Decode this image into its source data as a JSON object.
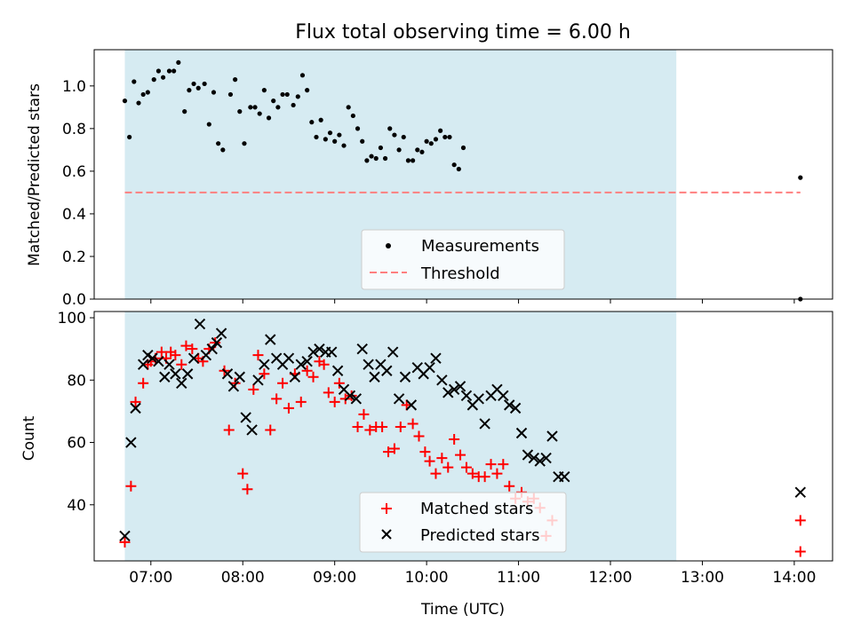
{
  "figure": {
    "title": "Flux total observing time = 6.00 h",
    "xlabel": "Time (UTC)"
  },
  "styles": {
    "shade_color": "#add8e6",
    "threshold_color": "#ff7f7f",
    "measurement_color": "#000000",
    "matched_color": "#ff0000",
    "predicted_color": "#000000"
  },
  "chart_data": [
    {
      "type": "scatter",
      "ylabel": "Matched/Predicted stars",
      "xlim": [
        "06:23",
        "14:25"
      ],
      "ylim": [
        0,
        1.17
      ],
      "x_ticks": [
        "07:00",
        "08:00",
        "09:00",
        "10:00",
        "11:00",
        "12:00",
        "13:00",
        "14:00"
      ],
      "y_ticks": [
        "0.0",
        "0.2",
        "0.4",
        "0.6",
        "0.8",
        "1.0"
      ],
      "y_tick_values": [
        0,
        0.2,
        0.4,
        0.6,
        0.8,
        1.0
      ],
      "shaded_span": [
        "06:43",
        "12:43"
      ],
      "legend": {
        "position": "lower center",
        "entries": [
          "Measurements",
          "Threshold"
        ]
      },
      "threshold": {
        "name": "Threshold",
        "value": 0.5,
        "x_range": [
          "06:43",
          "14:04"
        ]
      },
      "series": [
        {
          "name": "Measurements",
          "points": [
            [
              "06:43",
              0.93
            ],
            [
              "06:46",
              0.76
            ],
            [
              "06:49",
              1.02
            ],
            [
              "06:52",
              0.92
            ],
            [
              "06:55",
              0.96
            ],
            [
              "06:58",
              0.97
            ],
            [
              "07:02",
              1.03
            ],
            [
              "07:05",
              1.07
            ],
            [
              "07:08",
              1.04
            ],
            [
              "07:12",
              1.07
            ],
            [
              "07:15",
              1.07
            ],
            [
              "07:18",
              1.11
            ],
            [
              "07:22",
              0.88
            ],
            [
              "07:25",
              0.98
            ],
            [
              "07:28",
              1.01
            ],
            [
              "07:31",
              0.99
            ],
            [
              "07:35",
              1.01
            ],
            [
              "07:38",
              0.82
            ],
            [
              "07:41",
              0.97
            ],
            [
              "07:44",
              0.73
            ],
            [
              "07:47",
              0.7
            ],
            [
              "07:52",
              0.96
            ],
            [
              "07:55",
              1.03
            ],
            [
              "07:58",
              0.88
            ],
            [
              "08:01",
              0.73
            ],
            [
              "08:05",
              0.9
            ],
            [
              "08:08",
              0.9
            ],
            [
              "08:11",
              0.87
            ],
            [
              "08:14",
              0.98
            ],
            [
              "08:17",
              0.85
            ],
            [
              "08:20",
              0.93
            ],
            [
              "08:23",
              0.9
            ],
            [
              "08:26",
              0.96
            ],
            [
              "08:29",
              0.96
            ],
            [
              "08:33",
              0.91
            ],
            [
              "08:36",
              0.95
            ],
            [
              "08:39",
              1.05
            ],
            [
              "08:42",
              0.98
            ],
            [
              "08:45",
              0.83
            ],
            [
              "08:48",
              0.76
            ],
            [
              "08:51",
              0.84
            ],
            [
              "08:54",
              0.75
            ],
            [
              "08:57",
              0.78
            ],
            [
              "09:00",
              0.74
            ],
            [
              "09:03",
              0.77
            ],
            [
              "09:06",
              0.72
            ],
            [
              "09:09",
              0.9
            ],
            [
              "09:12",
              0.86
            ],
            [
              "09:15",
              0.8
            ],
            [
              "09:18",
              0.74
            ],
            [
              "09:21",
              0.65
            ],
            [
              "09:24",
              0.67
            ],
            [
              "09:27",
              0.66
            ],
            [
              "09:30",
              0.71
            ],
            [
              "09:33",
              0.66
            ],
            [
              "09:36",
              0.8
            ],
            [
              "09:39",
              0.77
            ],
            [
              "09:42",
              0.7
            ],
            [
              "09:45",
              0.76
            ],
            [
              "09:48",
              0.65
            ],
            [
              "09:51",
              0.65
            ],
            [
              "09:54",
              0.7
            ],
            [
              "09:57",
              0.69
            ],
            [
              "10:00",
              0.74
            ],
            [
              "10:03",
              0.73
            ],
            [
              "10:06",
              0.75
            ],
            [
              "10:09",
              0.79
            ],
            [
              "10:12",
              0.76
            ],
            [
              "10:15",
              0.76
            ],
            [
              "10:18",
              0.63
            ],
            [
              "10:21",
              0.61
            ],
            [
              "10:24",
              0.71
            ],
            [
              "14:04",
              0.57
            ],
            [
              "14:04",
              0.0
            ]
          ]
        }
      ]
    },
    {
      "type": "scatter",
      "ylabel": "Count",
      "xlim": [
        "06:23",
        "14:25"
      ],
      "ylim": [
        22,
        102
      ],
      "x_ticks": [
        "07:00",
        "08:00",
        "09:00",
        "10:00",
        "11:00",
        "12:00",
        "13:00",
        "14:00"
      ],
      "y_ticks": [
        "40",
        "60",
        "80",
        "100"
      ],
      "y_tick_values": [
        40,
        60,
        80,
        100
      ],
      "shaded_span": [
        "06:43",
        "12:43"
      ],
      "legend": {
        "position": "lower center",
        "entries": [
          "Matched stars",
          "Predicted stars"
        ]
      },
      "series": [
        {
          "name": "Matched stars",
          "marker": "plus",
          "points": [
            [
              "06:43",
              28
            ],
            [
              "06:47",
              46
            ],
            [
              "06:50",
              73
            ],
            [
              "06:55",
              79
            ],
            [
              "06:58",
              85
            ],
            [
              "07:00",
              86
            ],
            [
              "07:03",
              87
            ],
            [
              "07:07",
              89
            ],
            [
              "07:10",
              87
            ],
            [
              "07:13",
              89
            ],
            [
              "07:16",
              88
            ],
            [
              "07:20",
              85
            ],
            [
              "07:23",
              91
            ],
            [
              "07:27",
              90
            ],
            [
              "07:31",
              87
            ],
            [
              "07:34",
              86
            ],
            [
              "07:38",
              90
            ],
            [
              "07:42",
              92
            ],
            [
              "07:48",
              83
            ],
            [
              "07:51",
              64
            ],
            [
              "07:55",
              79
            ],
            [
              "08:00",
              50
            ],
            [
              "08:03",
              45
            ],
            [
              "08:07",
              77
            ],
            [
              "08:10",
              88
            ],
            [
              "08:14",
              82
            ],
            [
              "08:18",
              64
            ],
            [
              "08:22",
              74
            ],
            [
              "08:26",
              79
            ],
            [
              "08:30",
              71
            ],
            [
              "08:34",
              82
            ],
            [
              "08:38",
              73
            ],
            [
              "08:42",
              83
            ],
            [
              "08:46",
              81
            ],
            [
              "08:50",
              86
            ],
            [
              "08:53",
              85
            ],
            [
              "08:56",
              76
            ],
            [
              "09:00",
              73
            ],
            [
              "09:03",
              79
            ],
            [
              "09:07",
              74
            ],
            [
              "09:11",
              75
            ],
            [
              "09:15",
              65
            ],
            [
              "09:19",
              69
            ],
            [
              "09:23",
              64
            ],
            [
              "09:27",
              65
            ],
            [
              "09:31",
              65
            ],
            [
              "09:35",
              57
            ],
            [
              "09:39",
              58
            ],
            [
              "09:43",
              65
            ],
            [
              "09:47",
              72
            ],
            [
              "09:51",
              66
            ],
            [
              "09:55",
              62
            ],
            [
              "09:59",
              57
            ],
            [
              "10:02",
              54
            ],
            [
              "10:06",
              50
            ],
            [
              "10:10",
              55
            ],
            [
              "10:14",
              52
            ],
            [
              "10:18",
              61
            ],
            [
              "10:22",
              56
            ],
            [
              "10:26",
              52
            ],
            [
              "10:30",
              50
            ],
            [
              "10:34",
              49
            ],
            [
              "10:38",
              49
            ],
            [
              "10:42",
              53
            ],
            [
              "10:46",
              50
            ],
            [
              "10:50",
              53
            ],
            [
              "10:54",
              46
            ],
            [
              "10:58",
              42
            ],
            [
              "11:02",
              44
            ],
            [
              "11:06",
              41
            ],
            [
              "11:10",
              42
            ],
            [
              "11:14",
              39
            ],
            [
              "11:18",
              30
            ],
            [
              "11:22",
              35
            ],
            [
              "14:04",
              35
            ],
            [
              "14:04",
              25
            ]
          ]
        },
        {
          "name": "Predicted stars",
          "marker": "x",
          "points": [
            [
              "06:43",
              30
            ],
            [
              "06:47",
              60
            ],
            [
              "06:50",
              71
            ],
            [
              "06:55",
              85
            ],
            [
              "06:58",
              88
            ],
            [
              "07:01",
              87
            ],
            [
              "07:05",
              86
            ],
            [
              "07:09",
              81
            ],
            [
              "07:12",
              85
            ],
            [
              "07:16",
              82
            ],
            [
              "07:20",
              79
            ],
            [
              "07:24",
              82
            ],
            [
              "07:28",
              87
            ],
            [
              "07:32",
              98
            ],
            [
              "07:36",
              88
            ],
            [
              "07:40",
              90
            ],
            [
              "07:43",
              92
            ],
            [
              "07:46",
              95
            ],
            [
              "07:50",
              82
            ],
            [
              "07:54",
              78
            ],
            [
              "07:58",
              81
            ],
            [
              "08:02",
              68
            ],
            [
              "08:06",
              64
            ],
            [
              "08:10",
              80
            ],
            [
              "08:14",
              85
            ],
            [
              "08:18",
              93
            ],
            [
              "08:22",
              87
            ],
            [
              "08:26",
              85
            ],
            [
              "08:30",
              87
            ],
            [
              "08:34",
              81
            ],
            [
              "08:38",
              85
            ],
            [
              "08:42",
              86
            ],
            [
              "08:46",
              89
            ],
            [
              "08:50",
              90
            ],
            [
              "08:54",
              89
            ],
            [
              "08:58",
              89
            ],
            [
              "09:02",
              83
            ],
            [
              "09:06",
              77
            ],
            [
              "09:10",
              75
            ],
            [
              "09:14",
              74
            ],
            [
              "09:18",
              90
            ],
            [
              "09:22",
              85
            ],
            [
              "09:26",
              81
            ],
            [
              "09:30",
              85
            ],
            [
              "09:34",
              83
            ],
            [
              "09:38",
              89
            ],
            [
              "09:42",
              74
            ],
            [
              "09:46",
              81
            ],
            [
              "09:50",
              72
            ],
            [
              "09:54",
              84
            ],
            [
              "09:58",
              82
            ],
            [
              "10:02",
              84
            ],
            [
              "10:06",
              87
            ],
            [
              "10:10",
              80
            ],
            [
              "10:14",
              76
            ],
            [
              "10:18",
              77
            ],
            [
              "10:22",
              78
            ],
            [
              "10:26",
              75
            ],
            [
              "10:30",
              72
            ],
            [
              "10:34",
              74
            ],
            [
              "10:38",
              66
            ],
            [
              "10:42",
              75
            ],
            [
              "10:46",
              77
            ],
            [
              "10:50",
              75
            ],
            [
              "10:54",
              72
            ],
            [
              "10:58",
              71
            ],
            [
              "11:02",
              63
            ],
            [
              "11:06",
              56
            ],
            [
              "11:10",
              55
            ],
            [
              "11:14",
              54
            ],
            [
              "11:18",
              55
            ],
            [
              "11:22",
              62
            ],
            [
              "11:26",
              49
            ],
            [
              "11:30",
              49
            ],
            [
              "14:04",
              44
            ]
          ]
        }
      ]
    }
  ]
}
